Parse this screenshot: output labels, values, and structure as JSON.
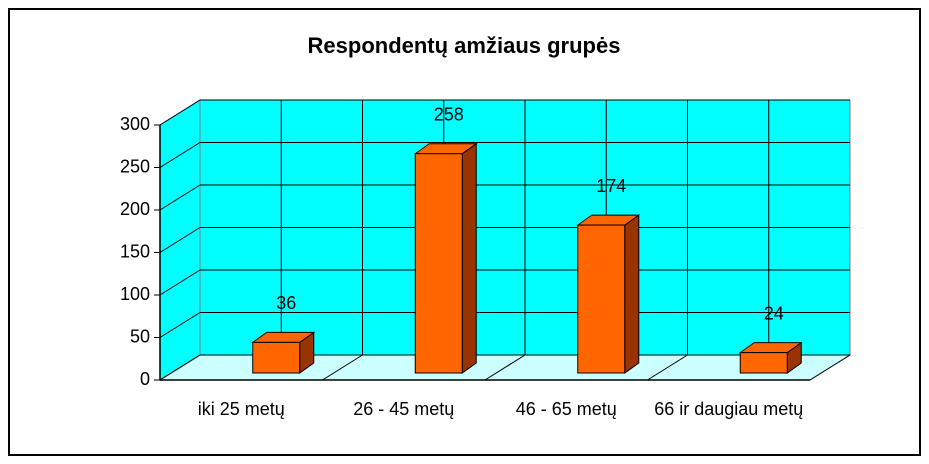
{
  "chart_data": {
    "type": "bar3d",
    "title": "Respondentų amžiaus grupės",
    "categories": [
      "iki 25 metų",
      "26 - 45 metų",
      "46 - 65 metų",
      "66 ir daugiau metų"
    ],
    "values": [
      36,
      258,
      174,
      24
    ],
    "color": "#ff6600",
    "side_color": "#993300",
    "wall_color": "#00ffff",
    "floor_color": "#ccffff",
    "ylim": [
      0,
      300
    ],
    "yticks": [
      0,
      50,
      100,
      150,
      200,
      250,
      300
    ],
    "grid": true
  }
}
